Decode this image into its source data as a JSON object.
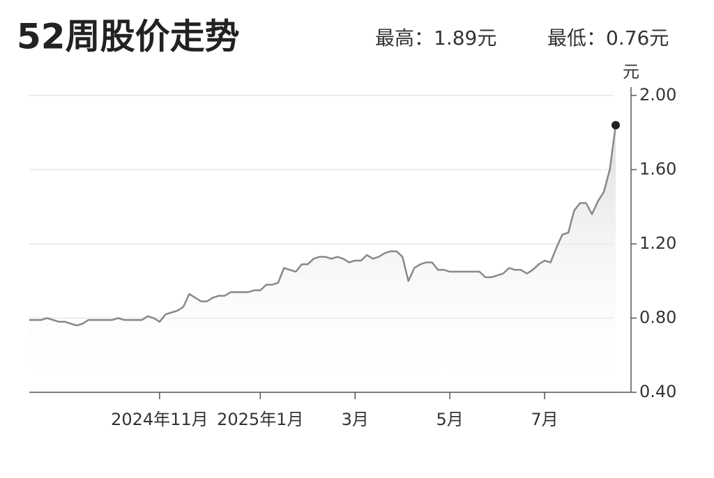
{
  "chart_data": {
    "type": "line",
    "title": "52周股价走势",
    "stats": [
      "最高：1.89元",
      "最低：0.76元"
    ],
    "y_unit": "元",
    "categories": [
      null,
      null,
      null,
      null,
      null,
      null,
      null,
      null,
      null,
      null,
      null,
      null,
      null,
      null,
      null,
      null,
      null,
      null,
      null,
      null,
      null,
      null,
      "2024年11月",
      null,
      null,
      null,
      null,
      null,
      null,
      null,
      null,
      null,
      null,
      null,
      null,
      null,
      null,
      null,
      null,
      "2025年1月",
      null,
      null,
      null,
      null,
      null,
      null,
      null,
      null,
      null,
      null,
      null,
      null,
      null,
      null,
      null,
      "3月",
      null,
      null,
      null,
      null,
      null,
      null,
      null,
      null,
      null,
      null,
      null,
      null,
      null,
      null,
      null,
      "5月",
      null,
      null,
      null,
      null,
      null,
      null,
      null,
      null,
      null,
      null,
      null,
      null,
      null,
      null,
      null,
      "7月",
      null,
      null,
      null,
      null,
      null,
      null,
      null,
      null,
      null,
      null,
      null,
      null
    ],
    "values": [
      0.79,
      0.79,
      0.79,
      0.8,
      0.79,
      0.78,
      0.78,
      0.77,
      0.76,
      0.77,
      0.79,
      0.79,
      0.79,
      0.79,
      0.79,
      0.8,
      0.79,
      0.79,
      0.79,
      0.79,
      0.81,
      0.8,
      0.78,
      0.82,
      0.83,
      0.84,
      0.86,
      0.93,
      0.91,
      0.89,
      0.89,
      0.91,
      0.92,
      0.92,
      0.94,
      0.94,
      0.94,
      0.94,
      0.95,
      0.95,
      0.98,
      0.98,
      0.99,
      1.07,
      1.06,
      1.05,
      1.09,
      1.09,
      1.12,
      1.13,
      1.13,
      1.12,
      1.13,
      1.12,
      1.1,
      1.11,
      1.11,
      1.14,
      1.12,
      1.13,
      1.15,
      1.16,
      1.16,
      1.13,
      1.0,
      1.07,
      1.09,
      1.1,
      1.1,
      1.06,
      1.06,
      1.05,
      1.05,
      1.05,
      1.05,
      1.05,
      1.05,
      1.02,
      1.02,
      1.03,
      1.04,
      1.07,
      1.06,
      1.06,
      1.04,
      1.06,
      1.09,
      1.11,
      1.1,
      1.18,
      1.25,
      1.26,
      1.38,
      1.42,
      1.42,
      1.36,
      1.43,
      1.48,
      1.6,
      1.84
    ],
    "color": "#888888",
    "marker_color": "#222222",
    "ylim": [
      0.4,
      2.0
    ],
    "yticks": [
      {
        "value": 0.4,
        "label": "0.40"
      },
      {
        "value": 0.8,
        "label": "0.80"
      },
      {
        "value": 1.2,
        "label": "1.20"
      },
      {
        "value": 1.6,
        "label": "1.60"
      },
      {
        "value": 2.0,
        "label": "2.00"
      }
    ],
    "grid": true,
    "yaxis_side": "right"
  }
}
